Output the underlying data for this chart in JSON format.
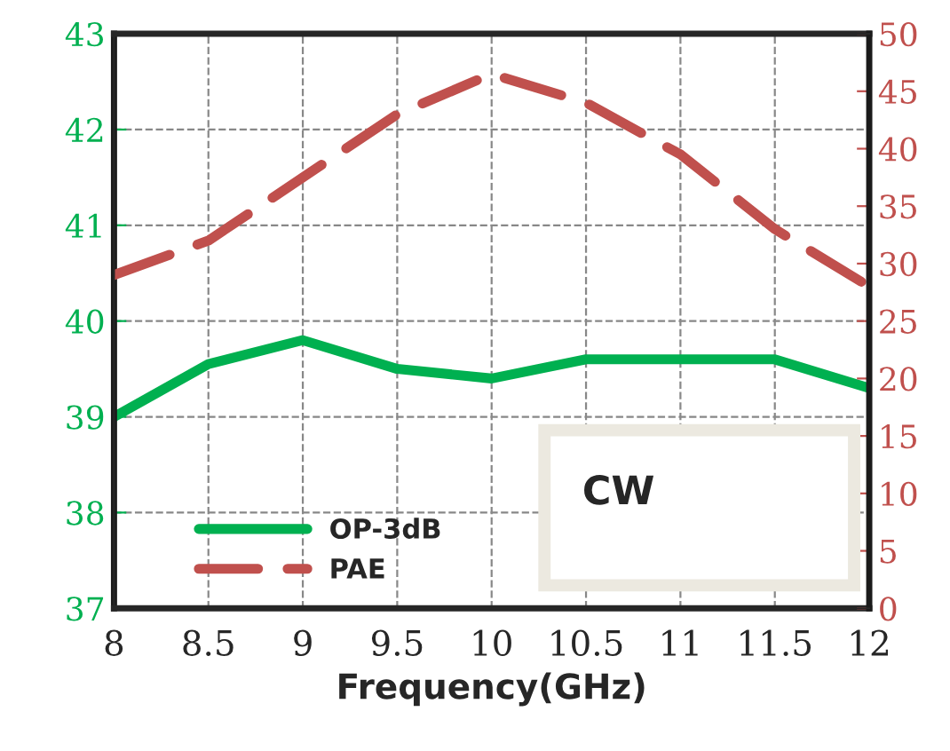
{
  "chart_data": {
    "type": "line",
    "xlabel": "Frequency(GHz)",
    "x": [
      8,
      8.5,
      9,
      9.5,
      10,
      10.5,
      11,
      11.5,
      12
    ],
    "series": [
      {
        "name": "OP-3dB",
        "color": "#00b050",
        "values": [
          39.0,
          39.55,
          39.8,
          39.5,
          39.4,
          39.6,
          39.6,
          39.6,
          39.3
        ],
        "line_style": "solid"
      },
      {
        "name": "PAE",
        "color": "#c0504d",
        "axis": "y2",
        "values": [
          29,
          32,
          37.5,
          43,
          46.5,
          44,
          39.5,
          33,
          28
        ],
        "line_style": "dashed"
      }
    ],
    "xlim": [
      8,
      12
    ],
    "xticks": [
      8,
      8.5,
      9,
      9.5,
      10,
      10.5,
      11,
      11.5,
      12
    ],
    "ylim": [
      37,
      43
    ],
    "yticks": [
      37,
      38,
      39,
      40,
      41,
      42,
      43
    ],
    "y2lim": [
      0,
      50
    ],
    "y2ticks": [
      0,
      5,
      10,
      15,
      20,
      25,
      30,
      35,
      40,
      45,
      50
    ],
    "grid": true,
    "legend": "bottom left",
    "marker": "none",
    "annotations": [
      "CW"
    ]
  }
}
